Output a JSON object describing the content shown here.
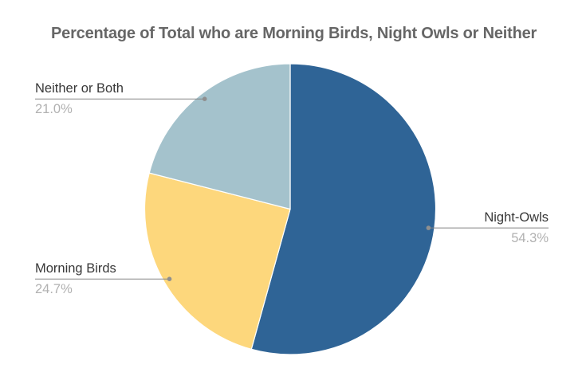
{
  "chart_data": {
    "type": "pie",
    "title": "Percentage of Total who are Morning Birds, Night Owls or Neither",
    "start_angle_deg": 0,
    "direction": "clockwise",
    "total": 100,
    "legend_position": "none",
    "label_style": "outside labels with horizontal leader lines ending in dots; percentage shown under each label",
    "slices": [
      {
        "label": "Night-Owls",
        "value": 54.3,
        "display": "54.3%",
        "color": "#2f6496"
      },
      {
        "label": "Morning Birds",
        "value": 24.7,
        "display": "24.7%",
        "color": "#fdd77c"
      },
      {
        "label": "Neither or Both",
        "value": 21.0,
        "display": "21.0%",
        "color": "#a4c2cc"
      }
    ]
  },
  "styles": {
    "background": "#ffffff",
    "title_color": "#666666",
    "label_color": "#383838",
    "percent_color": "#b1b1b1",
    "leader_line_color": "#858585",
    "dot_color": "#8f8f8f",
    "slice_stroke": "#ffffff"
  }
}
